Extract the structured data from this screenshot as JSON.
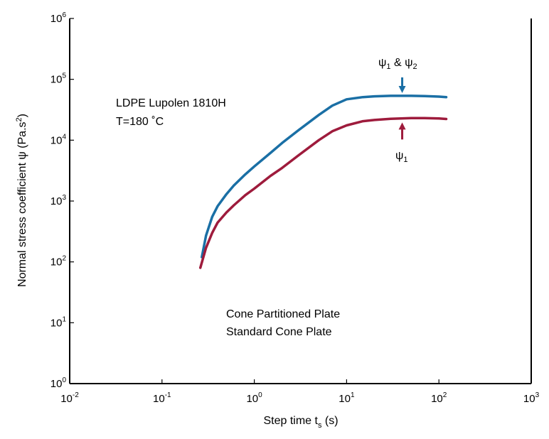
{
  "chart_data": {
    "type": "line",
    "title": "",
    "xlabel": {
      "main": "Step time t",
      "sub": "s",
      "tail": " (s)"
    },
    "ylabel": {
      "main": "Normal stress coefficient ψ (Pa.s",
      "sup": "2",
      "tail": ")"
    },
    "xscale": "log",
    "yscale": "log",
    "xlim": [
      0.01,
      1000
    ],
    "ylim": [
      1,
      1000000
    ],
    "grid": false,
    "x_ticks": [
      {
        "value": 0.01,
        "base": "10",
        "exp": "-2"
      },
      {
        "value": 0.1,
        "base": "10",
        "exp": "-1"
      },
      {
        "value": 1,
        "base": "10",
        "exp": "0"
      },
      {
        "value": 10,
        "base": "10",
        "exp": "1"
      },
      {
        "value": 100,
        "base": "10",
        "exp": "2"
      },
      {
        "value": 1000,
        "base": "10",
        "exp": "3"
      }
    ],
    "y_ticks": [
      {
        "value": 1,
        "base": "10",
        "exp": "0"
      },
      {
        "value": 10,
        "base": "10",
        "exp": "1"
      },
      {
        "value": 100,
        "base": "10",
        "exp": "2"
      },
      {
        "value": 1000,
        "base": "10",
        "exp": "3"
      },
      {
        "value": 10000,
        "base": "10",
        "exp": "4"
      },
      {
        "value": 100000,
        "base": "10",
        "exp": "5"
      },
      {
        "value": 1000000,
        "base": "10",
        "exp": "6"
      }
    ],
    "series": [
      {
        "name": "Cone Partitioned Plate",
        "color": "#1a6fa5",
        "x": [
          0.27,
          0.3,
          0.35,
          0.4,
          0.5,
          0.6,
          0.8,
          1,
          1.5,
          2,
          3,
          5,
          7,
          10,
          15,
          20,
          30,
          50,
          70,
          100,
          120
        ],
        "y": [
          120,
          270,
          550,
          820,
          1300,
          1800,
          2750,
          3700,
          6200,
          9000,
          14500,
          26000,
          37000,
          47000,
          51000,
          52500,
          53500,
          53500,
          53000,
          52000,
          51000
        ]
      },
      {
        "name": "Standard Cone Plate",
        "color": "#9e1b3c",
        "x": [
          0.26,
          0.3,
          0.35,
          0.4,
          0.5,
          0.6,
          0.8,
          1,
          1.5,
          2,
          3,
          5,
          7,
          10,
          15,
          20,
          30,
          50,
          70,
          100,
          120
        ],
        "y": [
          80,
          170,
          300,
          440,
          650,
          850,
          1250,
          1600,
          2600,
          3500,
          5600,
          10000,
          14000,
          17500,
          20500,
          21500,
          22500,
          23000,
          23000,
          22700,
          22300
        ]
      }
    ],
    "legend": {
      "position": "bottom-center"
    },
    "annotations": [
      {
        "id": "material",
        "text": "LDPE Lupolen 1810H"
      },
      {
        "id": "temperature",
        "text": "T=180 ˚C"
      }
    ],
    "arrow_labels": {
      "upper": {
        "a": "ψ",
        "a_sub": "1",
        "mid": " & ",
        "b": "ψ",
        "b_sub": "2",
        "x": 40,
        "y": 53500
      },
      "lower": {
        "a": "ψ",
        "a_sub": "1",
        "x": 40,
        "y": 23000
      }
    }
  }
}
